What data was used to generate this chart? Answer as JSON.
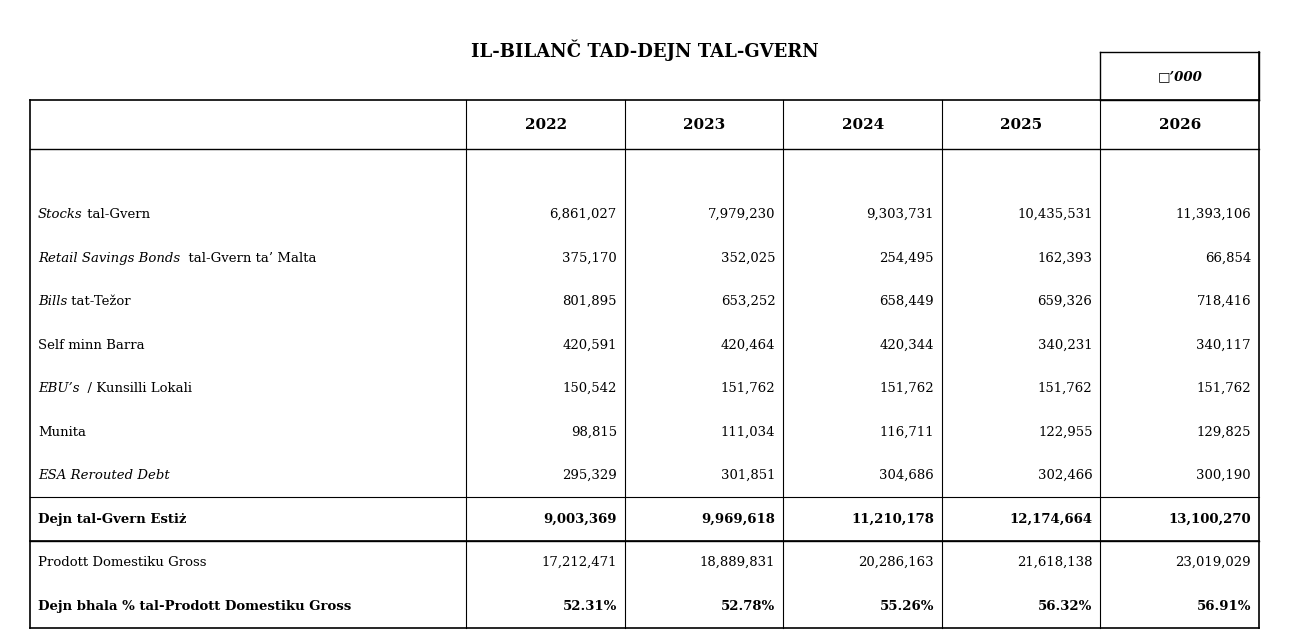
{
  "title": "IL-BILANČ TAD-DEJN TAL-GVERN",
  "currency_note": "□’000",
  "columns": [
    "",
    "2022",
    "2023",
    "2024",
    "2025",
    "2026"
  ],
  "rows": [
    {
      "label": "Stocks tal-Gvern",
      "italic_prefix": "Stocks",
      "values": [
        "6,861,027",
        "7,979,230",
        "9,303,731",
        "10,435,531",
        "11,393,106"
      ],
      "bold": false
    },
    {
      "label": "Retail Savings Bonds  tal-Gvern ta’ Malta",
      "italic_prefix": "Retail Savings Bonds",
      "values": [
        "375,170",
        "352,025",
        "254,495",
        "162,393",
        "66,854"
      ],
      "bold": false
    },
    {
      "label": "Bills tat-Težor",
      "italic_prefix": "Bills",
      "values": [
        "801,895",
        "653,252",
        "658,449",
        "659,326",
        "718,416"
      ],
      "bold": false
    },
    {
      "label": "Self minn Barra",
      "italic_prefix": "",
      "values": [
        "420,591",
        "420,464",
        "420,344",
        "340,231",
        "340,117"
      ],
      "bold": false
    },
    {
      "label": "EBU’s  / Kunsilli Lokali",
      "italic_prefix": "EBU’s",
      "values": [
        "150,542",
        "151,762",
        "151,762",
        "151,762",
        "151,762"
      ],
      "bold": false
    },
    {
      "label": "Munita",
      "italic_prefix": "",
      "values": [
        "98,815",
        "111,034",
        "116,711",
        "122,955",
        "129,825"
      ],
      "bold": false
    },
    {
      "label": "ESA Rerouted Debt",
      "italic_prefix": "ESA Rerouted Debt",
      "values": [
        "295,329",
        "301,851",
        "304,686",
        "302,466",
        "300,190"
      ],
      "bold": false
    },
    {
      "label": "Dejn tal-Gvern Estiż",
      "italic_prefix": "",
      "values": [
        "9,003,369",
        "9,969,618",
        "11,210,178",
        "12,174,664",
        "13,100,270"
      ],
      "bold": true
    },
    {
      "label": "Prodott Domestiku Gross",
      "italic_prefix": "",
      "values": [
        "17,212,471",
        "18,889,831",
        "20,286,163",
        "21,618,138",
        "23,019,029"
      ],
      "bold": false,
      "separator_above": true
    },
    {
      "label": "Dejn bhala % tal-Prodott Domestiku Gross",
      "italic_prefix": "",
      "values": [
        "52.31%",
        "52.78%",
        "55.26%",
        "56.32%",
        "56.91%"
      ],
      "bold": true
    }
  ],
  "bg_color": "#ffffff",
  "text_color": "#000000",
  "border_color": "#000000",
  "figsize": [
    12.89,
    6.43
  ],
  "dpi": 100
}
